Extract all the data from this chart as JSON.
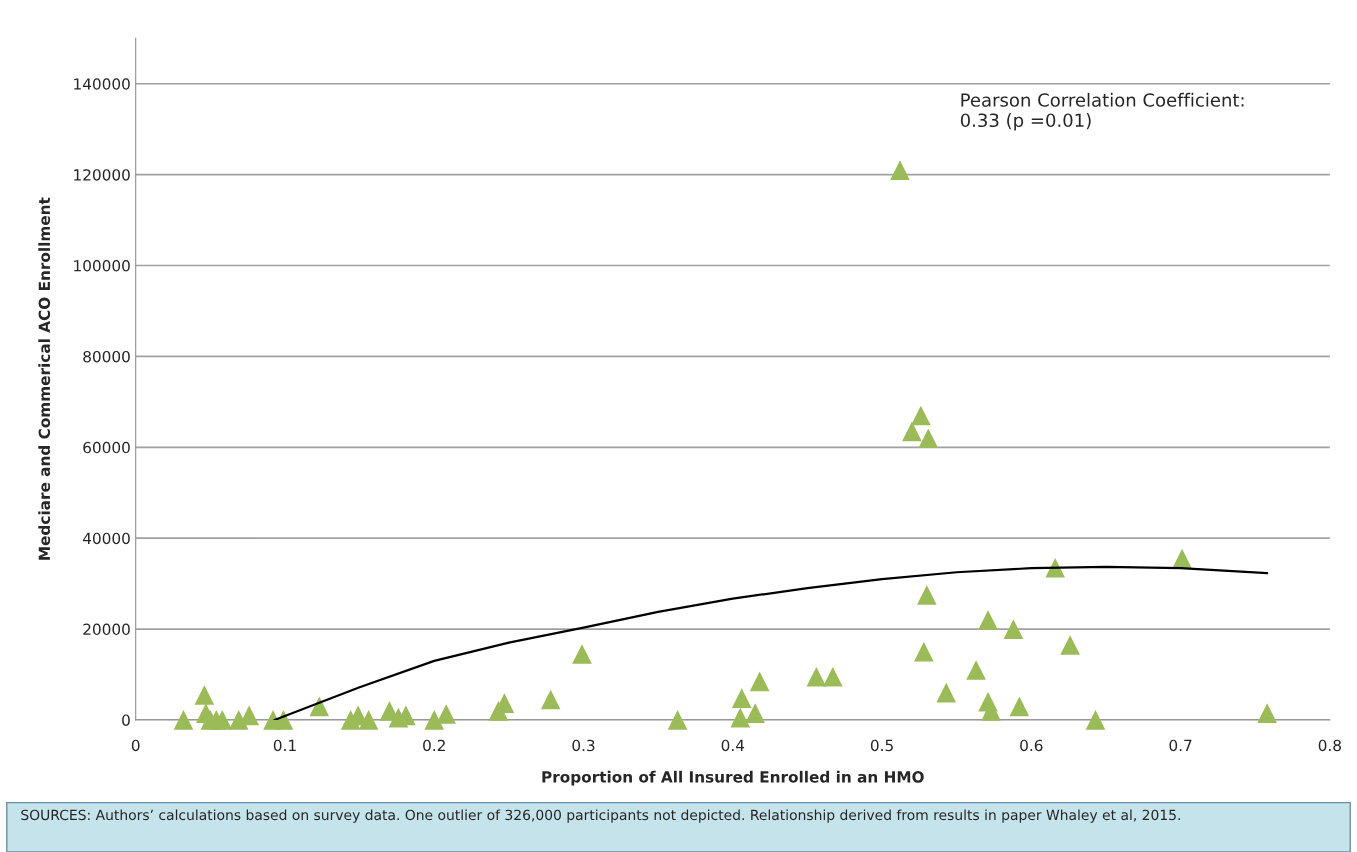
{
  "chart_data": {
    "type": "scatter",
    "xlabel": "Proportion of All Insured Enrolled in an HMO",
    "ylabel": "Medciare and Commerical ACO Enrollment",
    "xlim": [
      0,
      0.8
    ],
    "xticks": [
      0,
      0.1,
      0.2,
      0.3,
      0.4,
      0.5,
      0.6,
      0.7,
      0.8
    ],
    "ylim": [
      0,
      150000
    ],
    "yticks": [
      0,
      20000,
      40000,
      60000,
      80000,
      100000,
      120000,
      140000
    ],
    "grid": "y",
    "legend": false,
    "marker": "triangle",
    "annotations": [
      "Pearson Correlation Coefficient:\n0.33 (p =0.01)",
      "SOURCES: Authors’ calculations based on survey data. One outlier of 326,000 participants not depicted. Relationship derived from results in paper Whaley et al, 2015."
    ],
    "series": [
      {
        "color": "#9bbb59",
        "x": [
          0.032,
          0.046,
          0.047,
          0.05,
          0.054,
          0.058,
          0.069,
          0.076,
          0.092,
          0.099,
          0.123,
          0.144,
          0.149,
          0.156,
          0.17,
          0.176,
          0.181,
          0.2,
          0.208,
          0.243,
          0.247,
          0.278,
          0.299,
          0.363,
          0.406,
          0.405,
          0.415,
          0.418,
          0.456,
          0.467,
          0.512,
          0.52,
          0.526,
          0.531,
          0.53,
          0.528,
          0.543,
          0.563,
          0.571,
          0.571,
          0.573,
          0.588,
          0.592,
          0.616,
          0.626,
          0.643,
          0.701,
          0.758
        ],
        "values": [
          0,
          5500,
          1500,
          0,
          0,
          0,
          0,
          1000,
          0,
          0,
          3000,
          0,
          1000,
          0,
          2000,
          500,
          1000,
          0,
          1300,
          2000,
          3700,
          4500,
          14500,
          0,
          4800,
          500,
          1500,
          8500,
          9500,
          9500,
          121000,
          63500,
          67000,
          62000,
          27500,
          15000,
          6000,
          11000,
          22000,
          4000,
          2000,
          20000,
          3000,
          33500,
          16500,
          0,
          35500,
          1500
        ]
      },
      {
        "type": "line",
        "color": "#000000",
        "marker": "none",
        "x": [
          0.093,
          0.15,
          0.2,
          0.25,
          0.3,
          0.35,
          0.4,
          0.45,
          0.5,
          0.55,
          0.6,
          0.65,
          0.7,
          0.758
        ],
        "values": [
          0,
          7200,
          13000,
          17000,
          20300,
          23800,
          26700,
          29000,
          31000,
          32500,
          33400,
          33700,
          33400,
          32300
        ]
      }
    ]
  }
}
